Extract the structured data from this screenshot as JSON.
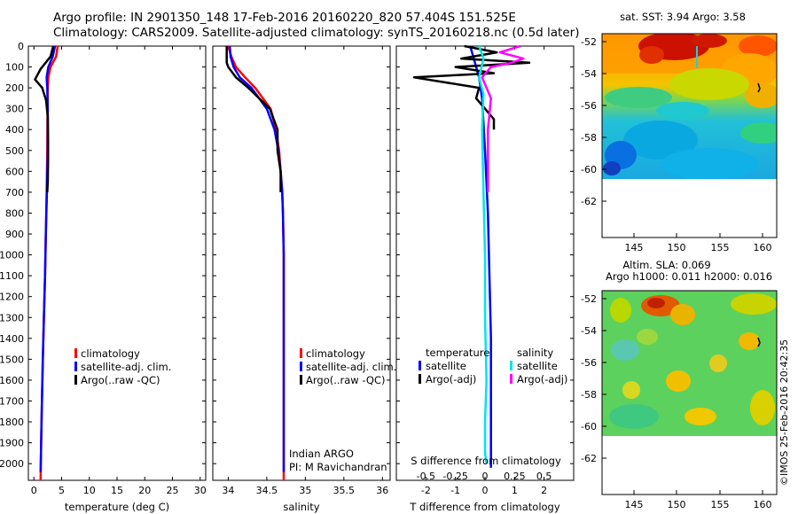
{
  "header": {
    "line1": "Argo profile: IN 2901350_148 17-Feb-2016 20160220_820 57.404S 151.525E",
    "line2": "Climatology: CARS2009. Satellite-adjusted climatology: synTS_20160218.nc (0.5d later)"
  },
  "colors": {
    "climatology": "#ff0000",
    "satellite": "#0000ff",
    "argo": "#000000",
    "sal_satellite": "#00e5e5",
    "sal_argo": "#ff00ff"
  },
  "chart_data": [
    {
      "id": "temperature",
      "type": "line",
      "xlabel": "temperature (deg C)",
      "ylabel": "",
      "xlim": [
        -1,
        31
      ],
      "ylim": [
        2080,
        0
      ],
      "xticks": [
        0,
        5,
        10,
        15,
        20,
        25,
        30
      ],
      "xtick_labels": [
        "0",
        "5",
        "10",
        "15",
        "20",
        "25",
        "30"
      ],
      "yticks": [
        0,
        100,
        200,
        300,
        400,
        500,
        600,
        700,
        800,
        900,
        1000,
        1100,
        1200,
        1300,
        1400,
        1500,
        1600,
        1700,
        1800,
        1900,
        2000
      ],
      "ytick_labels": [
        "0",
        "100",
        "200",
        "300",
        "400",
        "500",
        "600",
        "700",
        "800",
        "900",
        "1000",
        "1100",
        "1200",
        "1300",
        "1400",
        "1500",
        "1600",
        "1700",
        "1800",
        "1900",
        "2000"
      ],
      "legend": {
        "placement": "bottom-right",
        "entries": [
          "climatology",
          "satellite-adj. clim.",
          "Argo(..raw -QC)"
        ]
      },
      "series": [
        {
          "name": "climatology",
          "color": "#ff0000",
          "x": [
            4.3,
            4.0,
            3.0,
            2.6,
            2.5,
            2.45,
            2.4,
            2.3,
            2.15,
            2.0,
            1.8,
            1.6,
            1.45,
            1.3,
            1.2
          ],
          "y": [
            0,
            50,
            100,
            150,
            200,
            300,
            500,
            700,
            900,
            1100,
            1300,
            1500,
            1700,
            1900,
            2080
          ]
        },
        {
          "name": "satellite-adj. clim.",
          "color": "#0000ff",
          "x": [
            3.8,
            3.4,
            2.6,
            2.3,
            2.4,
            2.5,
            2.5,
            2.35,
            2.15,
            2.0,
            1.8,
            1.6,
            1.45,
            1.3,
            1.2
          ],
          "y": [
            0,
            50,
            100,
            150,
            200,
            300,
            500,
            700,
            900,
            1100,
            1300,
            1500,
            1700,
            1900,
            2040
          ]
        },
        {
          "name": "Argo(..raw -QC)",
          "color": "#000000",
          "x": [
            3.5,
            3.0,
            1.2,
            0.2,
            1.5,
            2.2,
            2.5,
            2.55,
            2.55,
            2.5,
            2.4
          ],
          "y": [
            0,
            50,
            110,
            160,
            200,
            260,
            340,
            450,
            550,
            650,
            700
          ]
        }
      ]
    },
    {
      "id": "salinity",
      "type": "line",
      "xlabel": "salinity",
      "ylabel": "",
      "xlim": [
        33.8,
        36.1
      ],
      "ylim": [
        2080,
        0
      ],
      "xticks": [
        34,
        34.5,
        35,
        35.5,
        36
      ],
      "xtick_labels": [
        "34",
        "34.5",
        "35",
        "35.5",
        "36"
      ],
      "legend": {
        "placement": "bottom-right",
        "entries": [
          "climatology",
          "satellite-adj. clim.",
          "Argo(..raw -QC)"
        ]
      },
      "annotations": [
        "Indian ARGO",
        "PI: M Ravichandran"
      ],
      "series": [
        {
          "name": "climatology",
          "color": "#ff0000",
          "x": [
            34.0,
            34.04,
            34.1,
            34.22,
            34.35,
            34.45,
            34.55,
            34.62,
            34.66,
            34.68,
            34.7,
            34.71,
            34.72,
            34.72,
            34.72,
            34.72,
            34.72
          ],
          "y": [
            0,
            50,
            100,
            150,
            200,
            250,
            300,
            400,
            500,
            600,
            700,
            800,
            1000,
            1300,
            1600,
            1900,
            2080
          ]
        },
        {
          "name": "satellite-adj. clim.",
          "color": "#0000ff",
          "x": [
            34.02,
            34.03,
            34.07,
            34.15,
            34.3,
            34.4,
            34.5,
            34.6,
            34.65,
            34.68,
            34.7,
            34.71,
            34.72,
            34.72,
            34.72,
            34.72,
            34.72
          ],
          "y": [
            0,
            50,
            100,
            150,
            200,
            250,
            300,
            400,
            500,
            600,
            700,
            800,
            1000,
            1300,
            1600,
            1900,
            2040
          ]
        },
        {
          "name": "Argo(..raw -QC)",
          "color": "#000000",
          "x": [
            33.98,
            33.98,
            34.0,
            34.1,
            34.26,
            34.4,
            34.54,
            34.64,
            34.64,
            34.68,
            34.68
          ],
          "y": [
            0,
            80,
            100,
            150,
            200,
            250,
            300,
            400,
            500,
            600,
            700
          ]
        }
      ]
    },
    {
      "id": "difference",
      "type": "line",
      "xlabel": "T difference from climatology",
      "xlabel_top": "S difference from climatology",
      "ylabel": "",
      "xlim": [
        -3,
        3
      ],
      "ylim": [
        2080,
        0
      ],
      "xticks": [
        -2,
        -1,
        0,
        1,
        2
      ],
      "xtick_labels": [
        "-2",
        "-1",
        "0",
        "1",
        "2"
      ],
      "xticks_top": [
        -0.5,
        -0.25,
        0,
        0.25,
        0.5
      ],
      "xtick_labels_top": [
        "-0.5",
        "-0.25",
        "0",
        "0.25",
        "0.5"
      ],
      "legend": {
        "placement": "bottom",
        "headers": [
          "temperature",
          "salinity"
        ],
        "entries": [
          "satellite",
          "Argo(-adj)",
          "satellite",
          "Argo(-adj)"
        ]
      },
      "series": [
        {
          "name": "satellite",
          "group": "temperature",
          "color": "#0000ff",
          "x": [
            -0.5,
            -0.4,
            -0.3,
            -0.2,
            -0.1,
            0.0,
            0.1,
            0.15,
            0.2,
            0.2,
            0.2,
            0.2
          ],
          "y": [
            0,
            50,
            100,
            150,
            250,
            500,
            800,
            1100,
            1400,
            1700,
            1900,
            2020
          ]
        },
        {
          "name": "Argo(-adj)",
          "group": "temperature",
          "color": "#000000",
          "x": [
            -0.7,
            0.4,
            -0.8,
            1.5,
            -1.0,
            0.3,
            -2.4,
            -0.2,
            -0.3,
            0.0,
            0.3,
            0.3
          ],
          "y": [
            0,
            30,
            60,
            80,
            100,
            130,
            150,
            200,
            250,
            300,
            350,
            400
          ]
        },
        {
          "name": "satellite",
          "group": "salinity",
          "color": "#00e5e5",
          "x": [
            -0.2,
            -0.05,
            -0.2,
            -0.05,
            -0.1,
            -0.05,
            0.0,
            0.0,
            0.05,
            0.0,
            0.0,
            0.05
          ],
          "y": [
            0,
            60,
            150,
            230,
            400,
            700,
            1000,
            1300,
            1600,
            1800,
            1950,
            2000
          ]
        },
        {
          "name": "Argo(-adj)",
          "group": "salinity",
          "color": "#ff00ff",
          "x": [
            1.2,
            0.5,
            1.3,
            0.9,
            0.2,
            -0.1,
            0.2,
            0.1,
            0.1,
            0.1
          ],
          "y": [
            0,
            30,
            60,
            80,
            100,
            150,
            250,
            400,
            600,
            700
          ]
        }
      ]
    }
  ],
  "maps": [
    {
      "id": "sst",
      "title": "sat. SST: 3.94  Argo: 3.58",
      "xticks": [
        "145",
        "150",
        "155",
        "160"
      ],
      "yticks": [
        "-52",
        "-54",
        "-56",
        "-58",
        "-60",
        "-62"
      ]
    },
    {
      "id": "sla",
      "title_line1": "Altim. SLA: 0.069",
      "title_line2": "Argo h1000: 0.011 h2000: 0.016",
      "xticks": [
        "145",
        "150",
        "155",
        "160"
      ],
      "yticks": [
        "-52",
        "-54",
        "-56",
        "-58",
        "-60",
        "-62"
      ]
    }
  ],
  "footer": {
    "stamp": "©IMOS 25-Feb-2016 20:42:35"
  }
}
